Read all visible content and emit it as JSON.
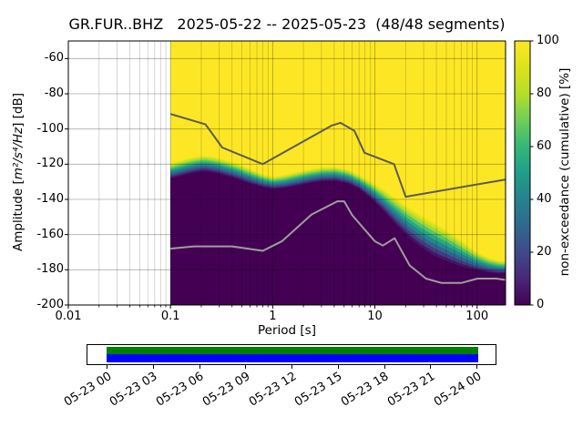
{
  "title": "GR.FUR..BHZ   2025-05-22 -- 2025-05-23  (48/48 segments)",
  "chart_data": {
    "type": "heatmap",
    "title": "GR.FUR..BHZ   2025-05-22 -- 2025-05-23  (48/48 segments)",
    "xlabel": "Period [s]",
    "ylabel": "Amplitude [m²/s⁴/Hz] [dB]",
    "ylabel_parts": {
      "prefix": "Amplitude [",
      "math": "m²/s⁴/Hz",
      "suffix": "] [dB]"
    },
    "xscale": "log",
    "xlim": [
      0.01,
      190
    ],
    "ylim": [
      -200,
      -50
    ],
    "x_tick_values": [
      0.01,
      0.1,
      1,
      10,
      100
    ],
    "x_tick_labels": [
      "0.01",
      "0.1",
      "1",
      "10",
      "100"
    ],
    "y_tick_values": [
      -200,
      -180,
      -160,
      -140,
      -120,
      -100,
      -80,
      -60
    ],
    "y_tick_labels": [
      "-200",
      "-180",
      "-160",
      "-140",
      "-120",
      "-100",
      "-80",
      "-60"
    ],
    "grid": true,
    "data_period_range": [
      0.1,
      190
    ],
    "colorbar": {
      "label": "non-exceedance (cumulative) [%]",
      "tick_values": [
        0,
        20,
        40,
        60,
        80,
        100
      ],
      "tick_labels": [
        "0",
        "20",
        "40",
        "60",
        "80",
        "100"
      ],
      "colormap": "viridis",
      "stops": [
        [
          0,
          "#440154"
        ],
        [
          0.1,
          "#482878"
        ],
        [
          0.2,
          "#3e4a89"
        ],
        [
          0.3,
          "#31688e"
        ],
        [
          0.4,
          "#26828e"
        ],
        [
          0.5,
          "#1f9e89"
        ],
        [
          0.6,
          "#35b779"
        ],
        [
          0.7,
          "#6ece58"
        ],
        [
          0.8,
          "#b5de2b"
        ],
        [
          0.9,
          "#dce319"
        ],
        [
          1,
          "#fde725"
        ]
      ]
    },
    "ppsd_envelope": {
      "description": "PPSD cumulative non-exceedance envelope: min_db = 0% boundary (dark), max_db = 100% boundary (yellow), in dB re m^2/s^4/Hz",
      "periods": [
        0.1,
        0.12,
        0.15,
        0.18,
        0.22,
        0.28,
        0.35,
        0.45,
        0.6,
        0.8,
        1.0,
        1.3,
        1.8,
        2.4,
        3.2,
        4.2,
        5.5,
        7.0,
        9.0,
        12,
        16,
        21,
        28,
        38,
        50,
        70,
        95,
        130,
        160,
        190
      ],
      "min_db": [
        -128,
        -127,
        -125.5,
        -124.5,
        -124,
        -125,
        -126.5,
        -128.5,
        -131,
        -133,
        -134,
        -133.5,
        -132,
        -130.5,
        -129.5,
        -129.5,
        -131,
        -134,
        -139,
        -146,
        -154,
        -161,
        -167,
        -172,
        -175,
        -178,
        -180,
        -181.5,
        -182,
        -182
      ],
      "max_db": [
        -119.5,
        -118,
        -116.5,
        -115.5,
        -115,
        -116,
        -117.5,
        -119.5,
        -122.5,
        -125.5,
        -127,
        -126,
        -124,
        -122.5,
        -121.5,
        -121.5,
        -123,
        -126,
        -129.5,
        -134,
        -139,
        -144,
        -148.5,
        -153,
        -157,
        -163,
        -169,
        -173,
        -174.5,
        -175
      ]
    },
    "noise_models": {
      "nhnm": {
        "label": "NHNM",
        "periods": [
          0.1,
          0.22,
          0.32,
          0.8,
          3.8,
          4.6,
          6.3,
          7.9,
          15.4,
          20.0,
          190
        ],
        "db": [
          -91.5,
          -97.4,
          -110.5,
          -120.0,
          -98.0,
          -96.5,
          -101.0,
          -113.5,
          -120.0,
          -138.5,
          -128.7
        ]
      },
      "nlnm": {
        "label": "NLNM",
        "periods": [
          0.1,
          0.17,
          0.4,
          0.8,
          1.24,
          2.4,
          4.3,
          5.0,
          6.0,
          10.0,
          12.0,
          15.6,
          21.9,
          31.6,
          45.0,
          70.0,
          101.0,
          154.0,
          190.0
        ],
        "db": [
          -168.0,
          -166.7,
          -166.7,
          -169.2,
          -163.7,
          -148.6,
          -141.1,
          -141.1,
          -149.0,
          -163.8,
          -166.2,
          -162.1,
          -177.5,
          -185.0,
          -187.5,
          -187.5,
          -185.0,
          -185.0,
          -185.8
        ]
      }
    }
  },
  "coverage": {
    "tick_labels": [
      "05-23 00",
      "05-23 03",
      "05-23 06",
      "05-23 09",
      "05-23 12",
      "05-23 15",
      "05-23 18",
      "05-23 21",
      "05-24 00"
    ],
    "segments_color": "#008000",
    "data_color": "#0000ff"
  },
  "colors": {
    "background": "#ffffff",
    "fill_low": "#440154",
    "fill_high": "#fde725",
    "nhnm_line": "#5a5a5a",
    "nlnm_line": "#9e9e9e",
    "frame": "#000000"
  }
}
